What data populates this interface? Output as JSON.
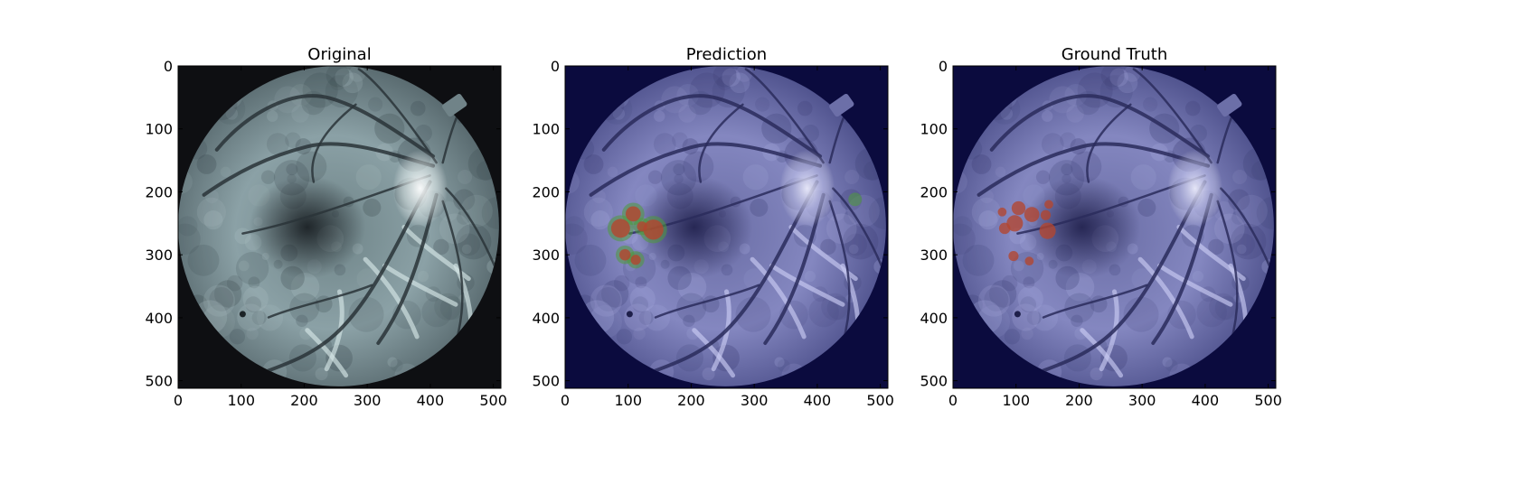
{
  "panels": [
    {
      "title": "Original",
      "variant": "original"
    },
    {
      "title": "Prediction",
      "variant": "prediction"
    },
    {
      "title": "Ground Truth",
      "variant": "truth"
    }
  ],
  "axes": {
    "x_ticks": [
      "0",
      "100",
      "200",
      "300",
      "400",
      "500"
    ],
    "y_ticks": [
      "0",
      "100",
      "200",
      "300",
      "400",
      "500"
    ],
    "x_range": [
      0,
      512
    ],
    "y_range": [
      0,
      512
    ],
    "y_inverted": true
  },
  "colors": {
    "original_background": "#0e0f12",
    "original_retina": "#7f9499",
    "tinted_background": "#0b0b3e",
    "tinted_retina": "#7c7fb8",
    "lesion_red": "#b4452e",
    "prediction_halo_green": "#4e9a3a"
  }
}
